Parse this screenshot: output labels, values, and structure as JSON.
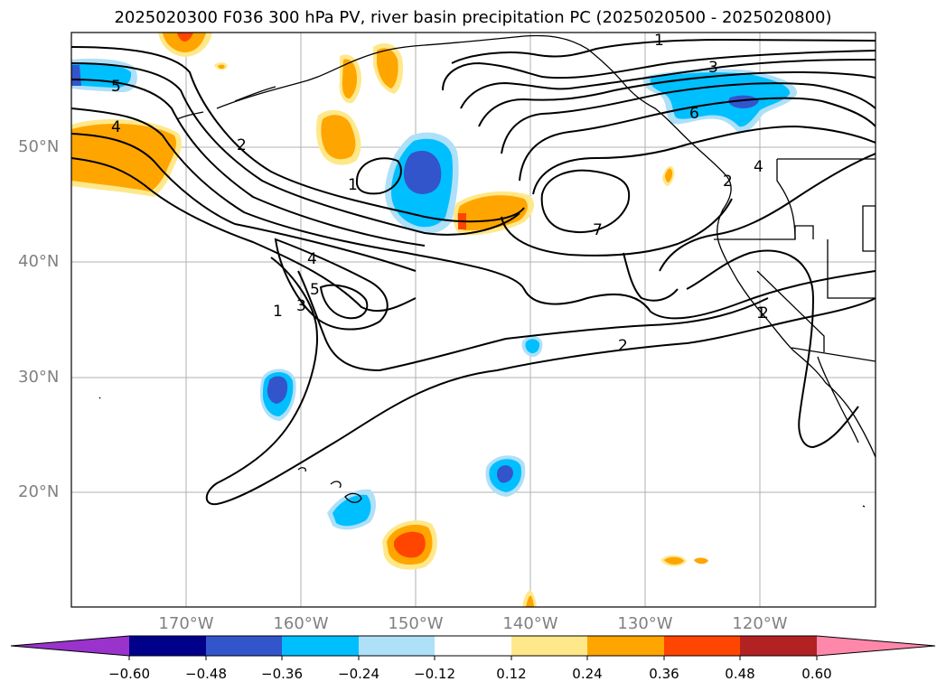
{
  "title": "2025020300 F036 300 hPa PV, river basin precipitation PC (2025020500 - 2025020800)",
  "lat_labels": [
    "50°N",
    "40°N",
    "30°N",
    "20°N"
  ],
  "lon_labels": [
    "170°W",
    "160°W",
    "150°W",
    "140°W",
    "130°W",
    "120°W"
  ],
  "pv_contour_labels": [
    "1",
    "1",
    "1",
    "1",
    "2",
    "2",
    "2",
    "2",
    "3",
    "3",
    "4",
    "4",
    "4",
    "5",
    "5",
    "6",
    "7"
  ],
  "colorbar": {
    "ticks": [
      "−0.60",
      "−0.48",
      "−0.36",
      "−0.24",
      "−0.12",
      "0.12",
      "0.24",
      "0.36",
      "0.48",
      "0.60"
    ],
    "colors": [
      "#9933cc",
      "#00008b",
      "#3355cc",
      "#00bfff",
      "#aee0f8",
      "#ffffff",
      "#ffe88a",
      "#ffa500",
      "#ff4500",
      "#b22222",
      "#ff88aa"
    ]
  },
  "colors": {
    "pv_contour": "#000000",
    "gridline": "#b0b0b0",
    "frame": "#000000"
  }
}
